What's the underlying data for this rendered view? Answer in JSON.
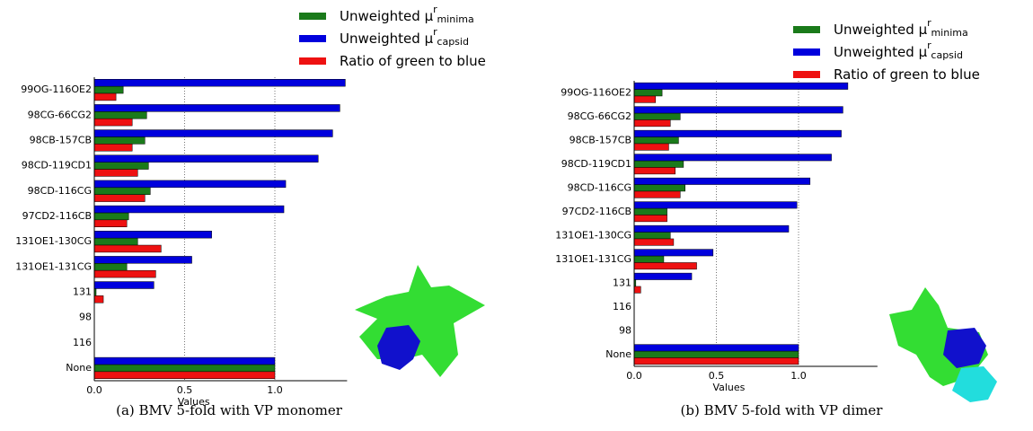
{
  "chart_data": [
    {
      "type": "bar",
      "orientation": "horizontal",
      "caption": "(a) BMV 5-fold with VP monomer",
      "x_label": "Values",
      "categories": [
        "99OG-116OE2",
        "98CG-66CG2",
        "98CB-157CB",
        "98CD-119CD1",
        "98CD-116CG",
        "97CD2-116CB",
        "131OE1-130CG",
        "131OE1-131CG",
        "131",
        "98",
        "116",
        "None"
      ],
      "series": [
        {
          "name": "Unweighted μ",
          "name_sup": "r",
          "name_sub": "minima",
          "color": "#1a7a1a",
          "values": [
            0.16,
            0.29,
            0.28,
            0.3,
            0.31,
            0.19,
            0.24,
            0.18,
            0.01,
            0,
            0,
            1.0
          ]
        },
        {
          "name": "Unweighted μ",
          "name_sup": "r",
          "name_sub": "capsid",
          "color": "#0000dd",
          "values": [
            1.39,
            1.36,
            1.32,
            1.24,
            1.06,
            1.05,
            0.65,
            0.54,
            0.33,
            0,
            0,
            1.0
          ]
        },
        {
          "name": "Ratio of green to blue",
          "color": "#ee1111",
          "values": [
            0.12,
            0.21,
            0.21,
            0.24,
            0.28,
            0.18,
            0.37,
            0.34,
            0.05,
            0,
            0,
            1.0
          ]
        }
      ],
      "xlim": [
        0,
        1.4
      ],
      "xticks": [
        {
          "value": 0,
          "label": "0.0"
        },
        {
          "value": 0.5,
          "label": "0.5"
        },
        {
          "value": 1,
          "label": "1.0"
        }
      ],
      "grid": true
    },
    {
      "type": "bar",
      "orientation": "horizontal",
      "caption": "(b) BMV 5-fold with VP dimer",
      "x_label": "Values",
      "categories": [
        "99OG-116OE2",
        "98CG-66CG2",
        "98CB-157CB",
        "98CD-119CD1",
        "98CD-116CG",
        "97CD2-116CB",
        "131OE1-130CG",
        "131OE1-131CG",
        "131",
        "116",
        "98",
        "None"
      ],
      "series": [
        {
          "name": "Unweighted μ",
          "name_sup": "r",
          "name_sub": "minima",
          "color": "#1a7a1a",
          "values": [
            0.17,
            0.28,
            0.27,
            0.3,
            0.31,
            0.2,
            0.22,
            0.18,
            0.01,
            0,
            0,
            1.0
          ]
        },
        {
          "name": "Unweighted μ",
          "name_sup": "r",
          "name_sub": "capsid",
          "color": "#0000dd",
          "values": [
            1.3,
            1.27,
            1.26,
            1.2,
            1.07,
            0.99,
            0.94,
            0.48,
            0.35,
            0,
            0,
            1.0
          ]
        },
        {
          "name": "Ratio of green to blue",
          "color": "#ee1111",
          "values": [
            0.13,
            0.22,
            0.21,
            0.25,
            0.28,
            0.2,
            0.24,
            0.38,
            0.04,
            0,
            0,
            1.0
          ]
        }
      ],
      "xlim": [
        0,
        1.48
      ],
      "xticks": [
        {
          "value": 0,
          "label": "0.0"
        },
        {
          "value": 0.5,
          "label": "0.5"
        },
        {
          "value": 1,
          "label": "1.0"
        }
      ],
      "grid": true
    }
  ]
}
